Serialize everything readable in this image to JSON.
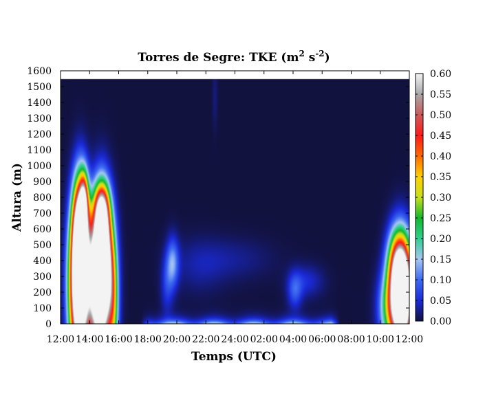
{
  "chart_data": {
    "type": "heatmap",
    "title": "Torres de Segre: TKE (m² s⁻²)",
    "title_parts": {
      "main": "Torres de Segre: TKE (m",
      "exp1": "2",
      "mid": " s",
      "exp2": "-2",
      "end": ")"
    },
    "xlabel": "Temps (UTC)",
    "ylabel": "Altura (m)",
    "x_ticks": [
      "12:00",
      "14:00",
      "16:00",
      "18:00",
      "20:00",
      "22:00",
      "24:00",
      "02:00",
      "04:00",
      "06:00",
      "08:00",
      "10:00",
      "12:00"
    ],
    "x_range_hours": [
      12,
      36
    ],
    "y_ticks": [
      0,
      100,
      200,
      300,
      400,
      500,
      600,
      700,
      800,
      900,
      1000,
      1100,
      1200,
      1300,
      1400,
      1500,
      1600
    ],
    "ylim": [
      0,
      1600
    ],
    "data_top_m": 1550,
    "colorbar": {
      "ticks": [
        "0.00",
        "0.05",
        "0.10",
        "0.15",
        "0.20",
        "0.25",
        "0.30",
        "0.35",
        "0.40",
        "0.45",
        "0.50",
        "0.55",
        "0.60"
      ],
      "range": [
        0,
        0.6
      ],
      "stops": [
        [
          0.0,
          "#12123f"
        ],
        [
          0.05,
          "#1a2ad8"
        ],
        [
          0.1,
          "#3d6af2"
        ],
        [
          0.15,
          "#a6c6f2"
        ],
        [
          0.2,
          "#2fcf8f"
        ],
        [
          0.25,
          "#12b82c"
        ],
        [
          0.3,
          "#c8df1e"
        ],
        [
          0.35,
          "#ffd000"
        ],
        [
          0.4,
          "#ff6a00"
        ],
        [
          0.45,
          "#ff1a1a"
        ],
        [
          0.5,
          "#cc5a5a"
        ],
        [
          0.55,
          "#a8a8a8"
        ],
        [
          0.6,
          "#f3f3f3"
        ]
      ]
    },
    "blobs": [
      {
        "t": 13.25,
        "h": 230,
        "st": 0.45,
        "sh": 320,
        "v": 0.9
      },
      {
        "t": 13.35,
        "h": 580,
        "st": 0.35,
        "sh": 230,
        "v": 0.65
      },
      {
        "t": 13.6,
        "h": 780,
        "st": 0.2,
        "sh": 120,
        "v": 0.3
      },
      {
        "t": 14.7,
        "h": 240,
        "st": 0.55,
        "sh": 300,
        "v": 0.9
      },
      {
        "t": 14.85,
        "h": 520,
        "st": 0.4,
        "sh": 220,
        "v": 0.55
      },
      {
        "t": 14.8,
        "h": 740,
        "st": 0.35,
        "sh": 100,
        "v": 0.25
      },
      {
        "t": 15.6,
        "h": 150,
        "st": 0.25,
        "sh": 250,
        "v": 0.2
      },
      {
        "t": 19.7,
        "h": 390,
        "st": 0.3,
        "sh": 110,
        "v": 0.12
      },
      {
        "t": 19.3,
        "h": 250,
        "st": 0.3,
        "sh": 130,
        "v": 0.06
      },
      {
        "t": 21.5,
        "h": 370,
        "st": 1.3,
        "sh": 120,
        "v": 0.03
      },
      {
        "t": 24.0,
        "h": 410,
        "st": 1.8,
        "sh": 90,
        "v": 0.025
      },
      {
        "t": 28.1,
        "h": 210,
        "st": 0.35,
        "sh": 80,
        "v": 0.08
      },
      {
        "t": 28.9,
        "h": 270,
        "st": 0.8,
        "sh": 70,
        "v": 0.05
      },
      {
        "t": 22.6,
        "h": 1440,
        "st": 0.12,
        "sh": 140,
        "v": 0.02
      },
      {
        "t": 35.5,
        "h": 160,
        "st": 0.5,
        "sh": 220,
        "v": 0.85
      },
      {
        "t": 35.2,
        "h": 360,
        "st": 0.5,
        "sh": 160,
        "v": 0.4
      },
      {
        "t": 34.7,
        "h": 100,
        "st": 0.55,
        "sh": 150,
        "v": 0.25
      }
    ],
    "surface_band": {
      "t_start": 17.5,
      "t_end": 31.2,
      "h_scale": 28,
      "v": 0.2
    }
  }
}
